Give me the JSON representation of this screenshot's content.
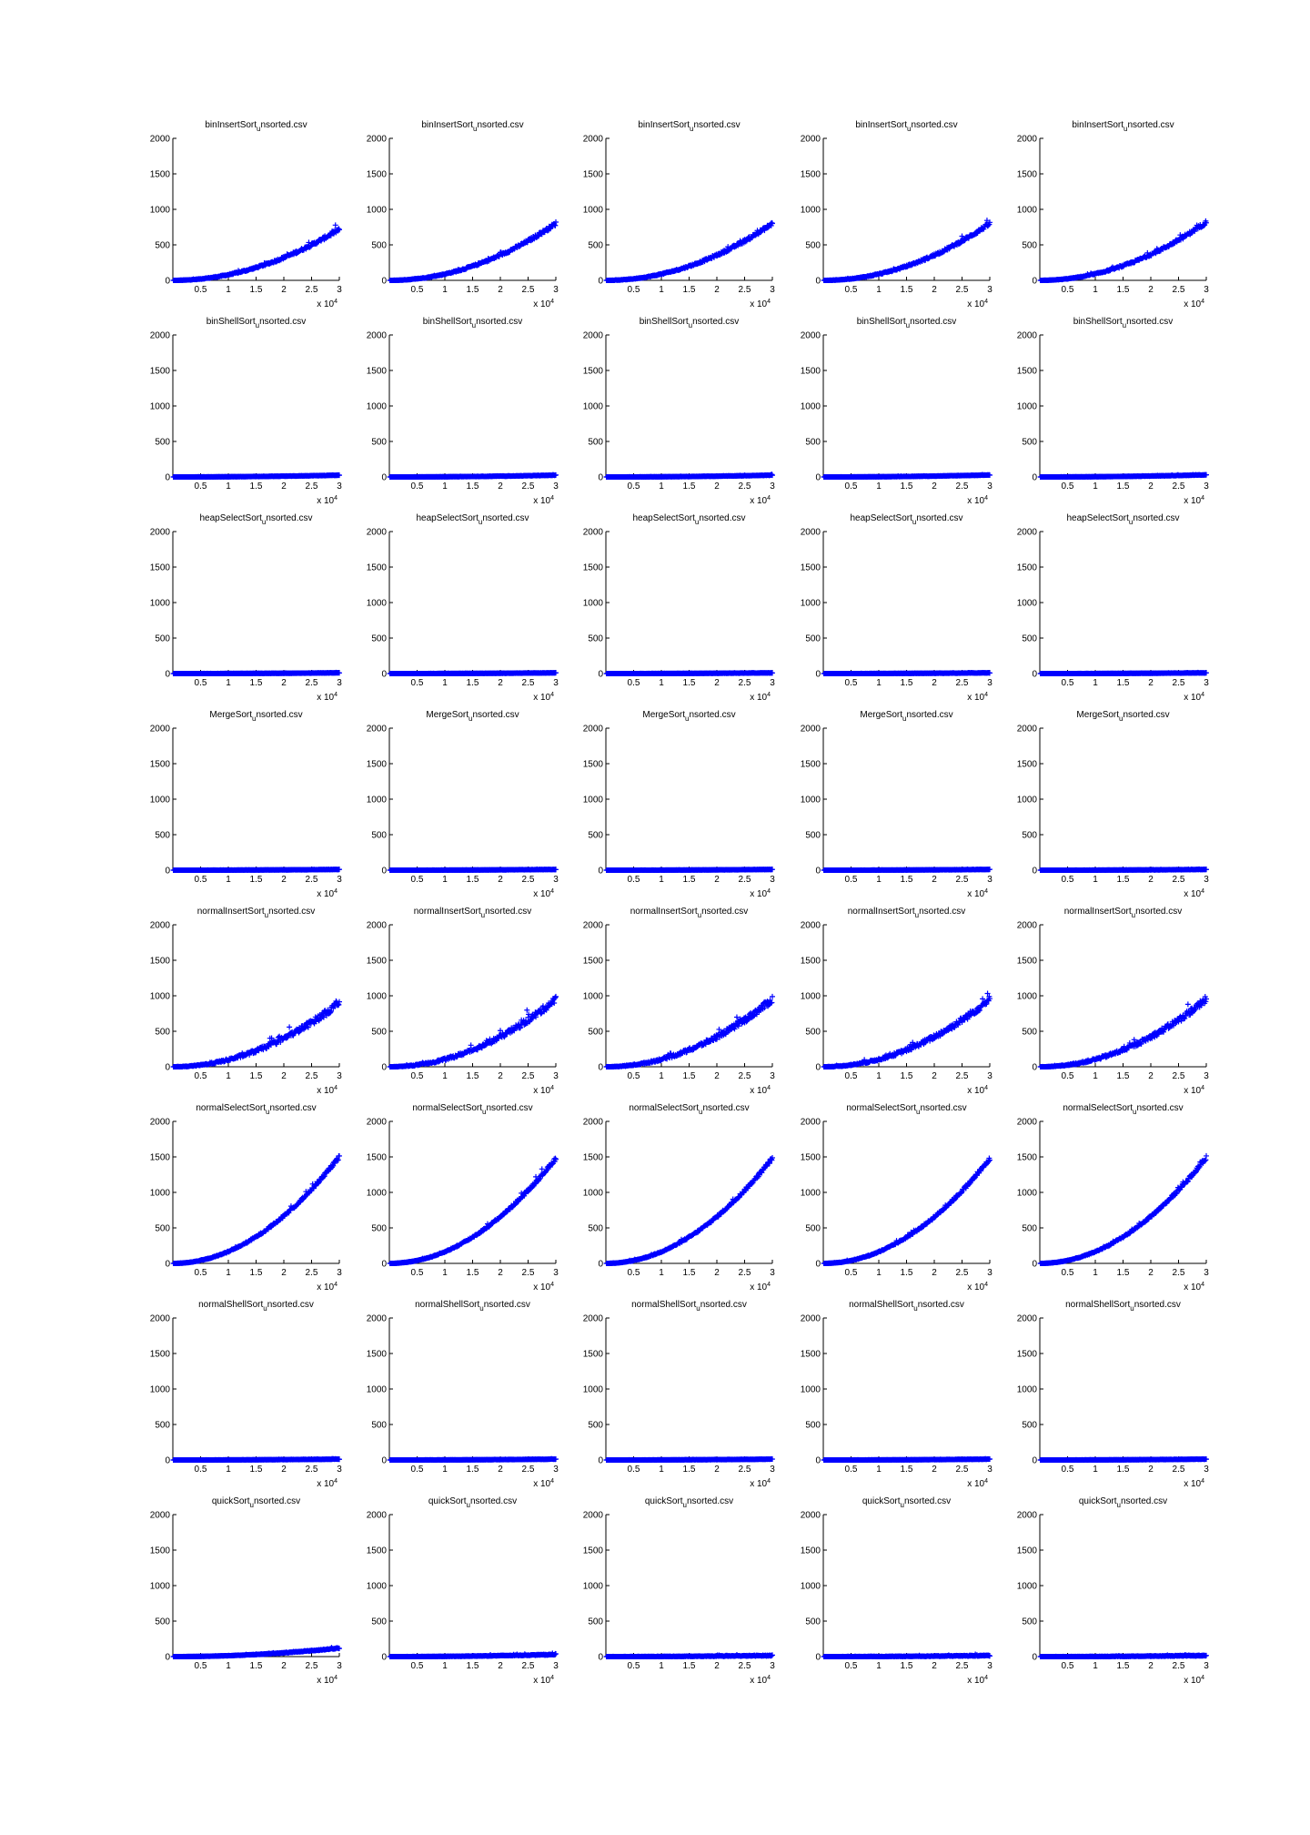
{
  "figure": {
    "x_multiplier": "x 10",
    "x_multiplier_exp": "4",
    "series_color": "#0000ff",
    "marker": "plus",
    "rows": 8,
    "cols": 5
  },
  "chart_data": {
    "type": "scatter",
    "layout": "8x5 small multiples",
    "xlim": [
      0,
      30000
    ],
    "ylim": [
      0,
      2000
    ],
    "x_ticks": [
      5000,
      10000,
      15000,
      20000,
      25000,
      30000
    ],
    "x_tick_labels": [
      "0.5",
      "1",
      "1.5",
      "2",
      "2.5",
      "3"
    ],
    "y_ticks": [
      0,
      500,
      1000,
      1500,
      2000
    ],
    "y_tick_labels": [
      "0",
      "500",
      "1000",
      "1500",
      "2000"
    ],
    "x_tick_scale_label": "x 10^4",
    "grid": false,
    "n_points": 300,
    "rows": [
      {
        "title": "binInsertSort_unsorted.csv",
        "title_main": "binInsertSort",
        "title_sub": "u",
        "title_rest": "nsorted.csv",
        "y_at_x_max": [
          720,
          800,
          800,
          800,
          820
        ],
        "scatter": 25
      },
      {
        "title": "binShellSort_unsorted.csv",
        "title_main": "binShellSort",
        "title_sub": "u",
        "title_rest": "nsorted.csv",
        "y_at_x_max": [
          25,
          25,
          25,
          28,
          30
        ],
        "scatter": 3
      },
      {
        "title": "heapSelectSort_unsorted.csv",
        "title_main": "heapSelectSort",
        "title_sub": "u",
        "title_rest": "nsorted.csv",
        "y_at_x_max": [
          10,
          10,
          10,
          10,
          10
        ],
        "scatter": 2
      },
      {
        "title": "MergeSort_unsorted.csv",
        "title_main": "MergeSort",
        "title_sub": "u",
        "title_rest": "nsorted.csv",
        "y_at_x_max": [
          10,
          10,
          10,
          10,
          10
        ],
        "scatter": 2
      },
      {
        "title": "normalInsertSort_unsorted.csv",
        "title_main": "normalInsertSort",
        "title_sub": "u",
        "title_rest": "nsorted.csv",
        "y_at_x_max": [
          900,
          950,
          950,
          950,
          950
        ],
        "scatter": 50
      },
      {
        "title": "normalSelectSort_unsorted.csv",
        "title_main": "normalSelectSort",
        "title_sub": "u",
        "title_rest": "nsorted.csv",
        "y_at_x_max": [
          1500,
          1480,
          1480,
          1470,
          1490
        ],
        "scatter": 25
      },
      {
        "title": "normalShellSort_unsorted.csv",
        "title_main": "normalShellSort",
        "title_sub": "u",
        "title_rest": "nsorted.csv",
        "y_at_x_max": [
          12,
          12,
          12,
          12,
          12
        ],
        "scatter": 2
      },
      {
        "title": "quickSort_unsorted.csv",
        "title_main": "quickSort",
        "title_sub": "u",
        "title_rest": "nsorted.csv",
        "y_at_x_max": [
          120,
          30,
          15,
          15,
          15
        ],
        "scatter": 6
      }
    ]
  }
}
